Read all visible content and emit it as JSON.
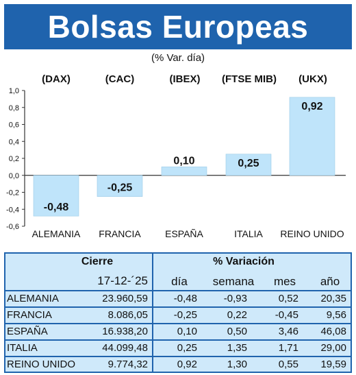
{
  "header": {
    "title": "Bolsas Europeas",
    "subtitle": "(% Var. día)"
  },
  "indices": [
    "(DAX)",
    "(CAC)",
    "(IBEX)",
    "(FTSE MIB)",
    "(UKX)"
  ],
  "chart_data": {
    "type": "bar",
    "categories": [
      "ALEMANIA",
      "FRANCIA",
      "ESPAÑA",
      "ITALIA",
      "REINO UNIDO"
    ],
    "values": [
      -0.48,
      -0.25,
      0.1,
      0.25,
      0.92
    ],
    "value_labels": [
      "-0,48",
      "-0,25",
      "0,10",
      "0,25",
      "0,92"
    ],
    "ylim": [
      -0.6,
      1.0
    ],
    "yticks": [
      "1,0",
      "0,8",
      "0,6",
      "0,4",
      "0,2",
      "0,0",
      "-0,2",
      "-0,4",
      "-0,6"
    ],
    "bar_color": "#bfe4fa",
    "axis_color": "#333333"
  },
  "table": {
    "group_headers": {
      "cierre": "Cierre",
      "variacion": "% Variación"
    },
    "subheaders": {
      "fecha": "17-12-´25",
      "dia": "día",
      "semana": "semana",
      "mes": "mes",
      "anio": "año"
    },
    "rows": [
      {
        "pais": "ALEMANIA",
        "cierre": "23.960,59",
        "dia": "-0,48",
        "semana": "-0,93",
        "mes": "0,52",
        "anio": "20,35"
      },
      {
        "pais": "FRANCIA",
        "cierre": "8.086,05",
        "dia": "-0,25",
        "semana": "0,22",
        "mes": "-0,45",
        "anio": "9,56"
      },
      {
        "pais": "ESPAÑA",
        "cierre": "16.938,20",
        "dia": "0,10",
        "semana": "0,50",
        "mes": "3,46",
        "anio": "46,08"
      },
      {
        "pais": "ITALIA",
        "cierre": "44.099,48",
        "dia": "0,25",
        "semana": "1,35",
        "mes": "1,71",
        "anio": "29,00"
      },
      {
        "pais": "REINO UNIDO",
        "cierre": "9.774,32",
        "dia": "0,92",
        "semana": "1,30",
        "mes": "0,55",
        "anio": "19,59"
      }
    ]
  },
  "colors": {
    "banner": "#1f63ad",
    "table_bg": "#cfe9fa",
    "table_lines": "#1f63ad"
  }
}
